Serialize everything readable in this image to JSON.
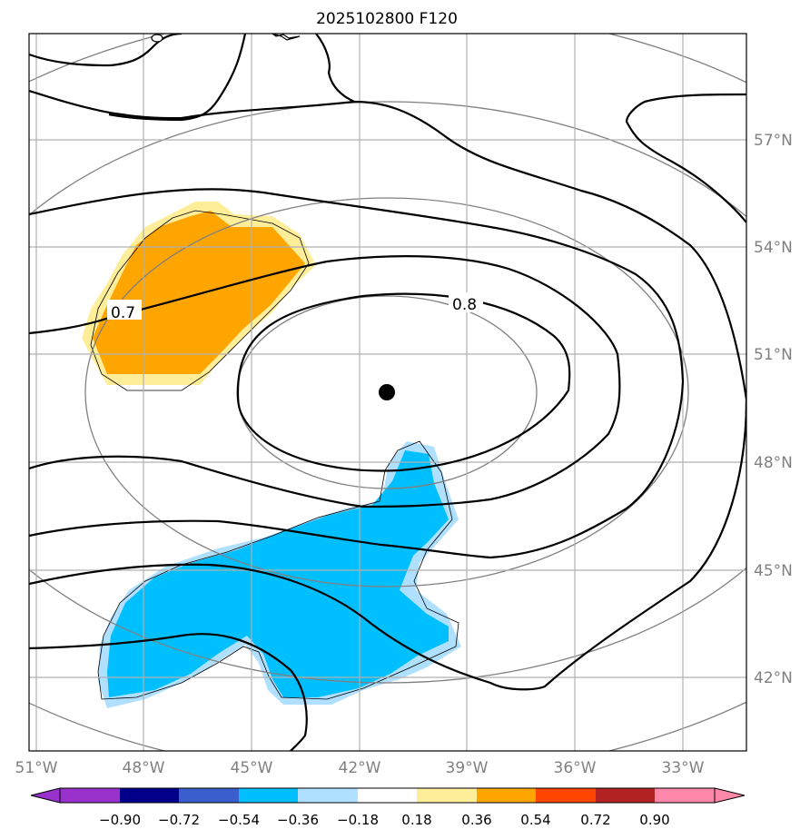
{
  "title": "2025102800 F120",
  "map": {
    "lat_labels": [
      "57°N",
      "54°N",
      "51°N",
      "48°N",
      "45°N",
      "42°N"
    ],
    "lon_labels": [
      "51°W",
      "48°W",
      "45°W",
      "42°W",
      "39°W",
      "36°W",
      "33°W"
    ],
    "contour_labels": [
      "0.7",
      "0.8"
    ],
    "center_marker": "storm-center",
    "fill_colors": {
      "positive_light": "#FFEE99",
      "positive_mid": "#FFA500",
      "negative_light": "#B0E0FF",
      "negative_mid": "#00BFFF"
    }
  },
  "colorbar": {
    "ticks": [
      "−0.90",
      "−0.72",
      "−0.54",
      "−0.36",
      "−0.18",
      "0.18",
      "0.36",
      "0.54",
      "0.72",
      "0.90"
    ],
    "colors": [
      "#9932CC",
      "#9932CC",
      "#00008B",
      "#3A5FCD",
      "#00BFFF",
      "#B0E0FF",
      "#FFFFFF",
      "#FFEE99",
      "#FFA500",
      "#FF4500",
      "#B22222",
      "#FF88AA"
    ]
  }
}
